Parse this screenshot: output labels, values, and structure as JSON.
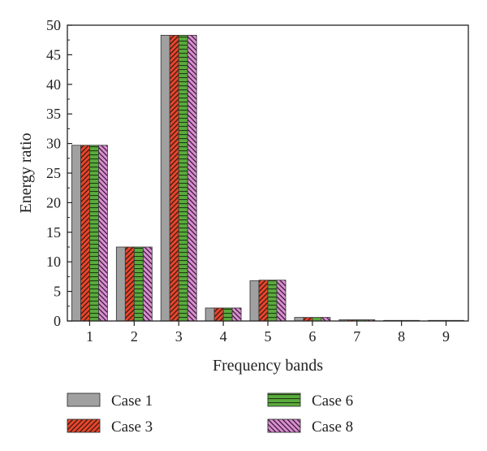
{
  "chart_data": {
    "type": "bar",
    "title": "",
    "xlabel": "Frequency bands",
    "ylabel": "Energy ratio",
    "ylim": [
      0,
      50
    ],
    "yticks": [
      0,
      5,
      10,
      15,
      20,
      25,
      30,
      35,
      40,
      45,
      50
    ],
    "categories": [
      "1",
      "2",
      "3",
      "4",
      "5",
      "6",
      "7",
      "8",
      "9"
    ],
    "grid": false,
    "legend_position": "bottom",
    "series": [
      {
        "name": "Case 1",
        "color": "#a0a0a0",
        "pattern": "solid",
        "values": [
          29.7,
          12.5,
          48.3,
          2.2,
          6.8,
          0.6,
          0.2,
          0.1,
          0.1
        ]
      },
      {
        "name": "Case 3",
        "color": "#e8452c",
        "pattern": "diagonal-hatch",
        "values": [
          29.7,
          12.5,
          48.3,
          2.2,
          6.9,
          0.6,
          0.2,
          0.1,
          0.1
        ]
      },
      {
        "name": "Case 6",
        "color": "#5aab3c",
        "pattern": "horizontal-lines",
        "values": [
          29.7,
          12.5,
          48.3,
          2.2,
          6.9,
          0.6,
          0.2,
          0.1,
          0.1
        ]
      },
      {
        "name": "Case 8",
        "color": "#d98fd0",
        "pattern": "back-diagonal-hatch",
        "values": [
          29.7,
          12.5,
          48.3,
          2.2,
          6.9,
          0.6,
          0.2,
          0.1,
          0.1
        ]
      }
    ]
  }
}
